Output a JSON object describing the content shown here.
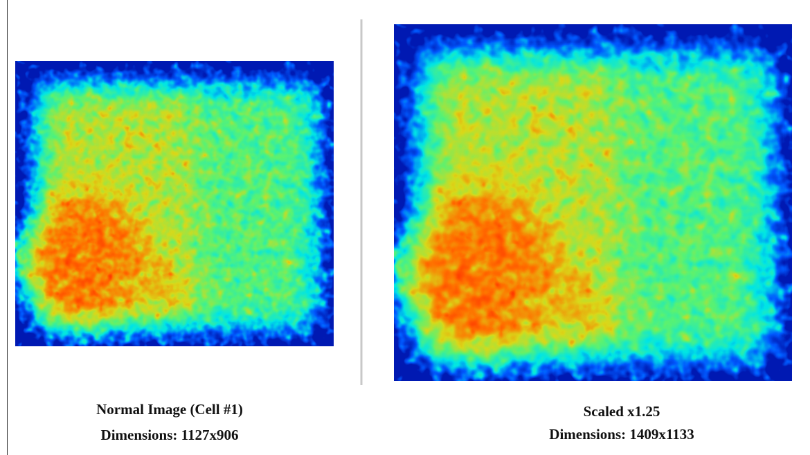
{
  "captions": [
    {
      "title": "Normal Image (Cell #1)",
      "dimensions": "Dimensions: 1127x906"
    },
    {
      "title": "Scaled x1.25",
      "dimensions": "Dimensions: 1409x1133"
    }
  ]
}
